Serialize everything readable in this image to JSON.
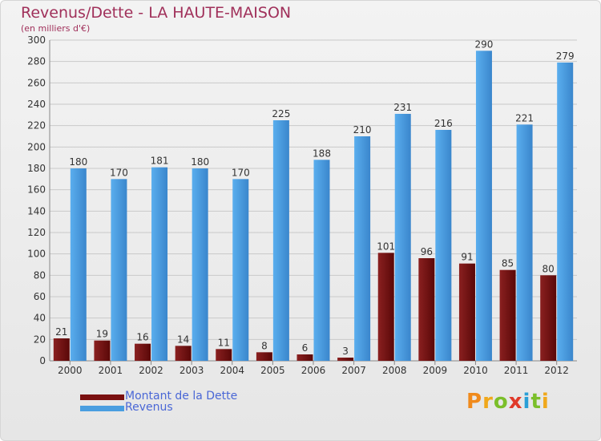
{
  "chart_data": {
    "type": "bar",
    "title": "Revenus/Dette - LA HAUTE-MAISON",
    "subtitle": "(en milliers d'€)",
    "categories": [
      "2000",
      "2001",
      "2002",
      "2003",
      "2004",
      "2005",
      "2006",
      "2007",
      "2008",
      "2009",
      "2010",
      "2011",
      "2012"
    ],
    "series": [
      {
        "name": "Montant de la Dette",
        "color": "#7a1010",
        "values": [
          21,
          19,
          16,
          14,
          11,
          8,
          6,
          3,
          101,
          96,
          91,
          85,
          80
        ]
      },
      {
        "name": "Revenus",
        "color": "#4a9ee0",
        "values": [
          180,
          170,
          181,
          180,
          170,
          225,
          188,
          210,
          231,
          216,
          290,
          221,
          279
        ]
      }
    ],
    "ylim": [
      0,
      300
    ],
    "yticks": [
      0,
      20,
      40,
      60,
      80,
      100,
      120,
      140,
      160,
      180,
      200,
      220,
      240,
      260,
      280,
      300
    ],
    "grid": true,
    "legend_position": "bottom-left"
  },
  "logo": {
    "text": "Proxiti",
    "letters": [
      {
        "ch": "P",
        "color": "#f08a1c"
      },
      {
        "ch": "r",
        "color": "#f0a81c"
      },
      {
        "ch": "o",
        "color": "#7bbf2a"
      },
      {
        "ch": "x",
        "color": "#e03a2a"
      },
      {
        "ch": "i",
        "color": "#2a9fd6"
      },
      {
        "ch": "t",
        "color": "#7bbf2a"
      },
      {
        "ch": "i",
        "color": "#f0a81c"
      }
    ]
  }
}
